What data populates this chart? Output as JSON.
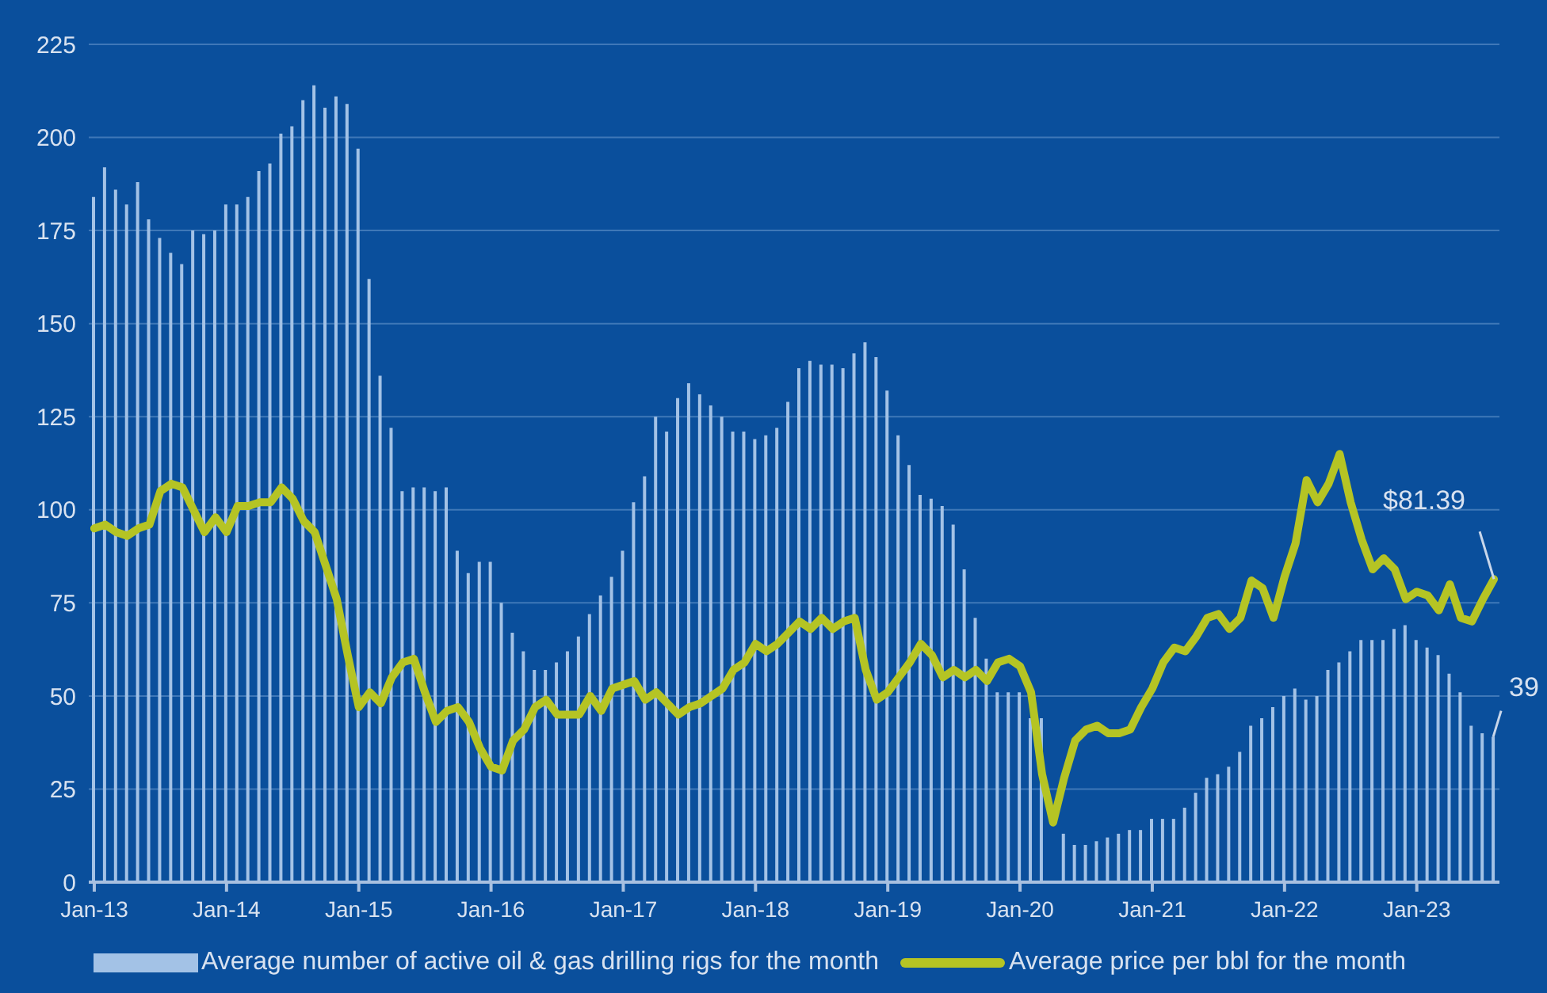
{
  "chart_data": {
    "type": "bar",
    "categories": [
      "Jan-13",
      null,
      null,
      null,
      null,
      null,
      null,
      null,
      null,
      null,
      null,
      null,
      "Jan-14",
      null,
      null,
      null,
      null,
      null,
      null,
      null,
      null,
      null,
      null,
      null,
      "Jan-15",
      null,
      null,
      null,
      null,
      null,
      null,
      null,
      null,
      null,
      null,
      null,
      "Jan-16",
      null,
      null,
      null,
      null,
      null,
      null,
      null,
      null,
      null,
      null,
      null,
      "Jan-17",
      null,
      null,
      null,
      null,
      null,
      null,
      null,
      null,
      null,
      null,
      null,
      "Jan-18",
      null,
      null,
      null,
      null,
      null,
      null,
      null,
      null,
      null,
      null,
      null,
      "Jan-19",
      null,
      null,
      null,
      null,
      null,
      null,
      null,
      null,
      null,
      null,
      null,
      "Jan-20",
      null,
      null,
      null,
      null,
      null,
      null,
      null,
      null,
      null,
      null,
      null,
      "Jan-21",
      null,
      null,
      null,
      null,
      null,
      null,
      null,
      null,
      null,
      null,
      null,
      "Jan-22",
      null,
      null,
      null,
      null,
      null,
      null,
      null,
      null,
      null,
      null,
      null,
      "Jan-23",
      null,
      null,
      null,
      null,
      null,
      null,
      null
    ],
    "series": [
      {
        "name": "Average number of active oil & gas drilling rigs for the month",
        "color": "#a3c2e6",
        "values": [
          184,
          192,
          186,
          182,
          188,
          178,
          173,
          169,
          166,
          175,
          174,
          175,
          182,
          182,
          184,
          191,
          193,
          201,
          203,
          210,
          214,
          208,
          211,
          209,
          197,
          162,
          136,
          122,
          105,
          106,
          106,
          105,
          106,
          89,
          83,
          86,
          86,
          75,
          67,
          62,
          57,
          57,
          59,
          62,
          66,
          72,
          77,
          82,
          89,
          102,
          109,
          125,
          121,
          130,
          134,
          131,
          128,
          125,
          121,
          121,
          119,
          120,
          122,
          129,
          138,
          140,
          139,
          139,
          138,
          142,
          145,
          141,
          132,
          120,
          112,
          104,
          103,
          101,
          96,
          84,
          71,
          60,
          51,
          51,
          51,
          44,
          44,
          null,
          13,
          10,
          10,
          11,
          12,
          13,
          14,
          14,
          17,
          17,
          17,
          20,
          24,
          28,
          29,
          31,
          35,
          42,
          44,
          47,
          50,
          52,
          49,
          50,
          57,
          59,
          62,
          65,
          65,
          65,
          68,
          69,
          65,
          63,
          61,
          56,
          51,
          42,
          40,
          39
        ],
        "value_labels": [
          null,
          null,
          null,
          null,
          null,
          null,
          null,
          null,
          null,
          null,
          null,
          null,
          null,
          null,
          null,
          null,
          null,
          null,
          null,
          null,
          null,
          null,
          null,
          null,
          null,
          null,
          null,
          null,
          null,
          null,
          null,
          null,
          null,
          null,
          null,
          null,
          null,
          null,
          null,
          null,
          null,
          null,
          null,
          null,
          null,
          null,
          null,
          null,
          null,
          null,
          null,
          null,
          null,
          null,
          null,
          null,
          null,
          null,
          null,
          null,
          null,
          null,
          null,
          null,
          null,
          null,
          null,
          null,
          null,
          null,
          null,
          null,
          null,
          null,
          null,
          null,
          null,
          null,
          null,
          null,
          null,
          null,
          null,
          null,
          null,
          null,
          null,
          null,
          null,
          null,
          null,
          null,
          null,
          null,
          null,
          null,
          null,
          null,
          null,
          null,
          null,
          null,
          null,
          null,
          null,
          null,
          null,
          null,
          null,
          null,
          null,
          null,
          null,
          null,
          null,
          null,
          null,
          null,
          null,
          null,
          null,
          null,
          null,
          null,
          null,
          null,
          null,
          "39"
        ]
      },
      {
        "name": "Average price per bbl for the month",
        "type": "line",
        "color": "#b5c424",
        "values": [
          95,
          96,
          94,
          93,
          95,
          96,
          105,
          107,
          106,
          100,
          94,
          98,
          94,
          101,
          101,
          102,
          102,
          106,
          103,
          97,
          94,
          85,
          76,
          61,
          47,
          51,
          48,
          55,
          59,
          60,
          51,
          43,
          46,
          47,
          43,
          36,
          31,
          30,
          38,
          41,
          47,
          49,
          45,
          45,
          45,
          50,
          46,
          52,
          53,
          54,
          49,
          51,
          48,
          45,
          47,
          48,
          50,
          52,
          57,
          59,
          64,
          62,
          64,
          67,
          70,
          68,
          71,
          68,
          70,
          71,
          57,
          49,
          51,
          55,
          59,
          64,
          61,
          55,
          57,
          55,
          57,
          54,
          59,
          60,
          58,
          51,
          29,
          16,
          28,
          38,
          41,
          42,
          40,
          40,
          41,
          47,
          52,
          59,
          63,
          62,
          66,
          71,
          72,
          68,
          71,
          81,
          79,
          71,
          82,
          91,
          108,
          102,
          107,
          115,
          102,
          92,
          84,
          87,
          84,
          76,
          78,
          77,
          73,
          80,
          71,
          70,
          76,
          81.39
        ],
        "value_labels": [
          null,
          null,
          null,
          null,
          null,
          null,
          null,
          null,
          null,
          null,
          null,
          null,
          null,
          null,
          null,
          null,
          null,
          null,
          null,
          null,
          null,
          null,
          null,
          null,
          null,
          null,
          null,
          null,
          null,
          null,
          null,
          null,
          null,
          null,
          null,
          null,
          null,
          null,
          null,
          null,
          null,
          null,
          null,
          null,
          null,
          null,
          null,
          null,
          null,
          null,
          null,
          null,
          null,
          null,
          null,
          null,
          null,
          null,
          null,
          null,
          null,
          null,
          null,
          null,
          null,
          null,
          null,
          null,
          null,
          null,
          null,
          null,
          null,
          null,
          null,
          null,
          null,
          null,
          null,
          null,
          null,
          null,
          null,
          null,
          null,
          null,
          null,
          null,
          null,
          null,
          null,
          null,
          null,
          null,
          null,
          null,
          null,
          null,
          null,
          null,
          null,
          null,
          null,
          null,
          null,
          null,
          null,
          null,
          null,
          null,
          null,
          null,
          null,
          null,
          null,
          null,
          null,
          null,
          null,
          null,
          null,
          null,
          null,
          null,
          null,
          null,
          null,
          "$81.39"
        ]
      }
    ],
    "ylim": [
      0,
      225
    ],
    "yticks": [
      0,
      25,
      50,
      75,
      100,
      125,
      150,
      175,
      200,
      225
    ],
    "grid": "y",
    "legend": "bottom",
    "line_style": "solid"
  }
}
